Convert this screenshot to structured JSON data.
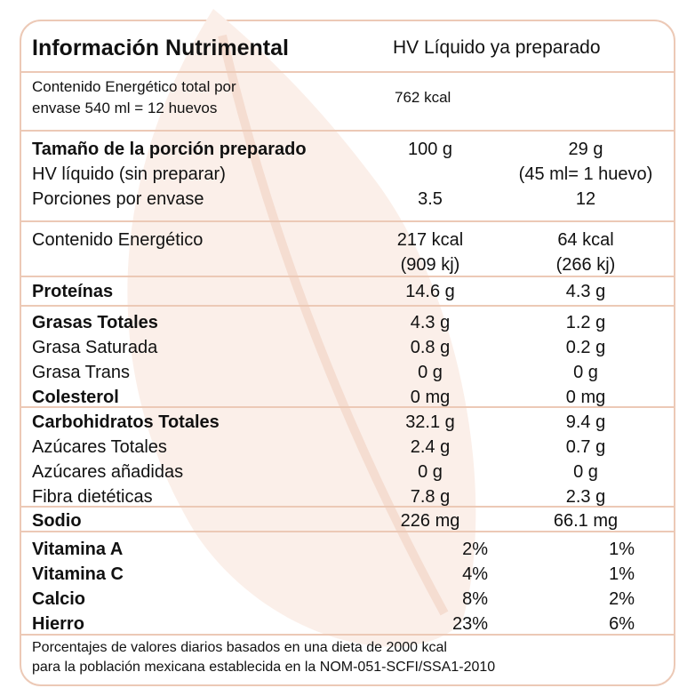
{
  "header": {
    "title": "Información Nutrimental",
    "product": "HV Líquido ya preparado"
  },
  "energy_total": {
    "label_line1": "Contenido Energético total por",
    "label_line2": "envase 540 ml = 12 huevos",
    "value": "762 kcal"
  },
  "serving": {
    "label": "Tamaño de la porción preparado",
    "col1": "100 g",
    "col2": "29 g",
    "sub_label": "HV líquido (sin preparar)",
    "sub_col2": "(45 ml= 1 huevo)",
    "portions_label": "Porciones por envase",
    "portions_col1": "3.5",
    "portions_col2": "12"
  },
  "energy": {
    "label": "Contenido Energético",
    "col1_kcal": "217 kcal",
    "col1_kj": "(909 kj)",
    "col2_kcal": "64 kcal",
    "col2_kj": "(266 kj)"
  },
  "protein": {
    "label": "Proteínas",
    "col1": "14.6 g",
    "col2": "4.3 g"
  },
  "fats": [
    {
      "label": "Grasas Totales",
      "col1": "4.3 g",
      "col2": "1.2 g"
    },
    {
      "label": "Grasa Saturada",
      "col1": "0.8 g",
      "col2": "0.2 g"
    },
    {
      "label": "Grasa Trans",
      "col1": "0 g",
      "col2": "0 g"
    },
    {
      "label": "Colesterol",
      "col1": "0 mg",
      "col2": "0 mg"
    }
  ],
  "carbs": [
    {
      "label": "Carbohidratos Totales",
      "col1": "32.1 g",
      "col2": "9.4 g"
    },
    {
      "label": "Azúcares Totales",
      "col1": "2.4 g",
      "col2": "0.7 g"
    },
    {
      "label": "Azúcares añadidas",
      "col1": "0 g",
      "col2": "0 g"
    },
    {
      "label": "Fibra dietéticas",
      "col1": "7.8 g",
      "col2": "2.3 g"
    }
  ],
  "sodium": {
    "label": "Sodio",
    "col1": "226 mg",
    "col2": "66.1 mg"
  },
  "vitamins": [
    {
      "label": "Vitamina A",
      "col1": "2%",
      "col2": "1%"
    },
    {
      "label": "Vitamina C",
      "col1": "4%",
      "col2": "1%"
    },
    {
      "label": "Calcio",
      "col1": "8%",
      "col2": "2%"
    },
    {
      "label": "Hierro",
      "col1": "23%",
      "col2": "6%"
    }
  ],
  "footer": {
    "line1": "Porcentajes de valores diarios basados en una dieta de 2000 kcal",
    "line2": "para la población mexicana establecida en la NOM-051-SCFI/SSA1-2010"
  },
  "colors": {
    "border": "#ecc9b6",
    "watermark": "#fbefe9"
  }
}
